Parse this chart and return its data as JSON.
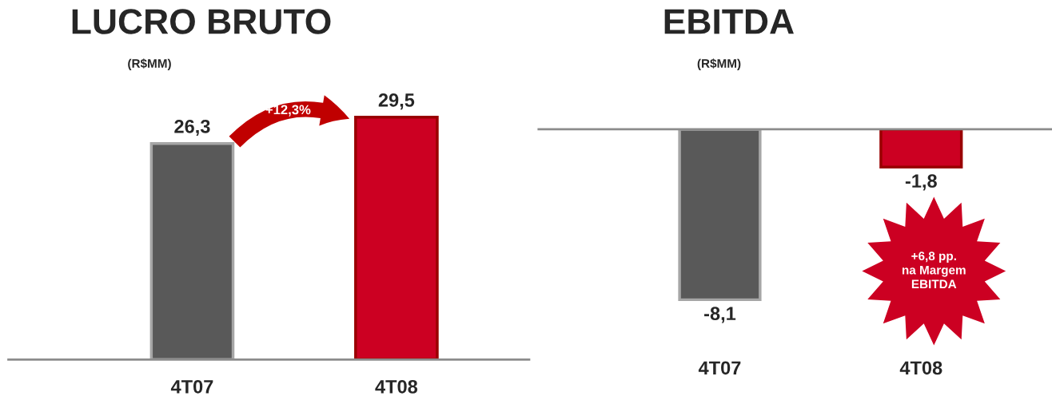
{
  "chart_data": [
    {
      "type": "bar",
      "title": "LUCRO BRUTO",
      "subtitle": "(R$MM)",
      "categories": [
        "4T07",
        "4T08"
      ],
      "values": [
        26.3,
        29.5
      ],
      "colors": [
        "#595959",
        "#cc0022"
      ],
      "value_labels": [
        "26,3",
        "29,5"
      ],
      "annotations": [
        "+12,3%"
      ],
      "grid": false,
      "legend": false
    },
    {
      "type": "bar",
      "title": "EBITDA",
      "subtitle": "(R$MM)",
      "categories": [
        "4T07",
        "4T08"
      ],
      "values": [
        -8.1,
        -1.8
      ],
      "colors": [
        "#595959",
        "#cc0022"
      ],
      "value_labels": [
        "-8,1",
        "-1,8"
      ],
      "annotations": [
        "+6,8 pp.\nna Margem\nEBITDA"
      ],
      "grid": false,
      "legend": false
    }
  ]
}
